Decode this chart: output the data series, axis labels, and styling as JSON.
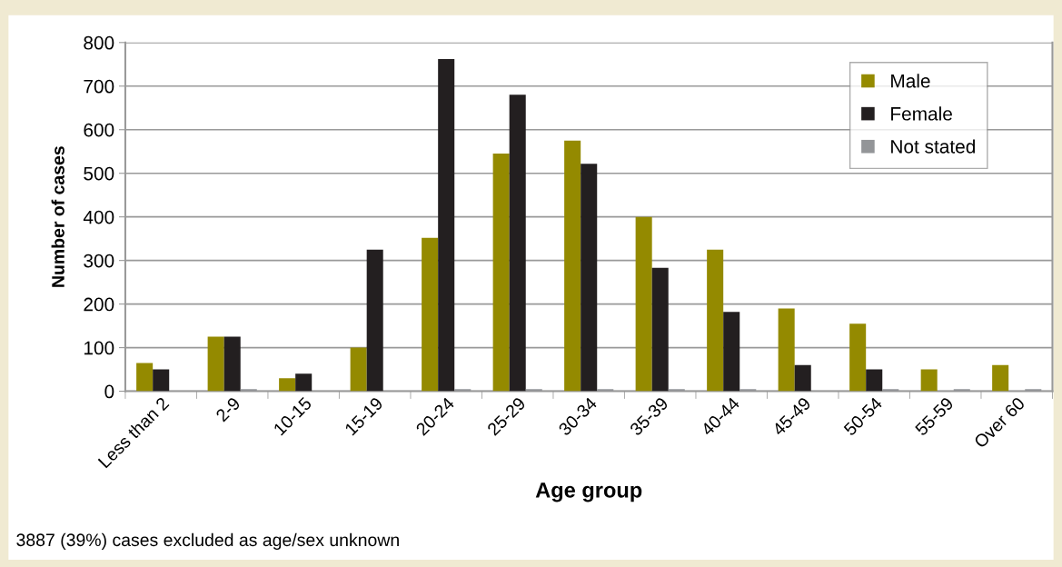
{
  "chart_data": {
    "type": "bar",
    "xlabel": "Age group",
    "ylabel": "Number of cases",
    "categories": [
      "Less than 2",
      "2-9",
      "10-15",
      "15-19",
      "20-24",
      "25-29",
      "30-34",
      "35-39",
      "40-44",
      "45-49",
      "50-54",
      "55-59",
      "Over 60"
    ],
    "series": [
      {
        "name": "Male",
        "color": "#948a00",
        "values": [
          65,
          125,
          30,
          100,
          352,
          545,
          575,
          400,
          325,
          190,
          155,
          50,
          60
        ]
      },
      {
        "name": "Female",
        "color": "#231f20",
        "values": [
          50,
          125,
          40,
          325,
          762,
          680,
          522,
          283,
          182,
          60,
          50,
          0,
          0
        ]
      },
      {
        "name": "Not stated",
        "color": "#939598",
        "values": [
          0,
          5,
          0,
          0,
          5,
          5,
          5,
          5,
          5,
          0,
          5,
          5,
          5
        ]
      }
    ],
    "ylim": [
      0,
      800
    ],
    "yticks": [
      0,
      100,
      200,
      300,
      400,
      500,
      600,
      700,
      800
    ],
    "grid": "y",
    "legend": "top right",
    "annotations": [
      "3887 (39%) cases excluded as age/sex unknown"
    ]
  }
}
